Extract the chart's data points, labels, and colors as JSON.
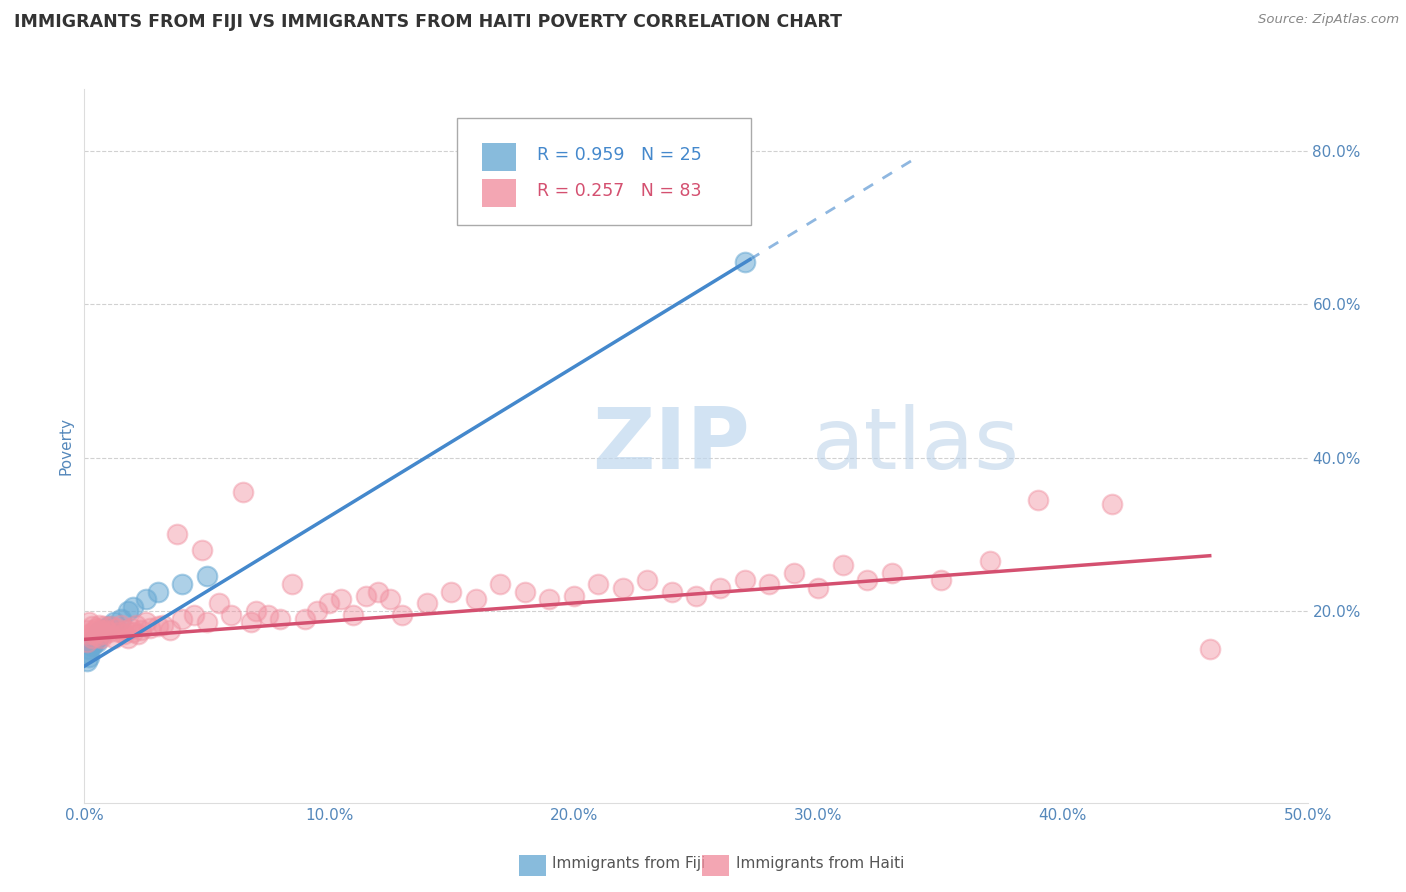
{
  "title": "IMMIGRANTS FROM FIJI VS IMMIGRANTS FROM HAITI POVERTY CORRELATION CHART",
  "source": "Source: ZipAtlas.com",
  "ylabel": "Poverty",
  "xlim": [
    0.0,
    0.5
  ],
  "ylim": [
    -0.05,
    0.88
  ],
  "xticks": [
    0.0,
    0.1,
    0.2,
    0.3,
    0.4,
    0.5
  ],
  "xtick_labels": [
    "0.0%",
    "10.0%",
    "20.0%",
    "30.0%",
    "40.0%",
    "50.0%"
  ],
  "ytick_labels": [
    "20.0%",
    "40.0%",
    "60.0%",
    "80.0%"
  ],
  "ytick_vals": [
    0.2,
    0.4,
    0.6,
    0.8
  ],
  "fiji_color": "#6aaad4",
  "fiji_line_color": "#4488cc",
  "haiti_color": "#f090a0",
  "haiti_line_color": "#d45070",
  "fiji_R": "0.959",
  "fiji_N": "25",
  "haiti_R": "0.257",
  "haiti_N": "83",
  "fiji_scatter_x": [
    0.001,
    0.001,
    0.002,
    0.002,
    0.003,
    0.003,
    0.004,
    0.004,
    0.005,
    0.005,
    0.006,
    0.006,
    0.007,
    0.008,
    0.009,
    0.01,
    0.012,
    0.015,
    0.018,
    0.02,
    0.025,
    0.03,
    0.04,
    0.05,
    0.27
  ],
  "fiji_scatter_y": [
    0.135,
    0.145,
    0.14,
    0.15,
    0.155,
    0.16,
    0.158,
    0.162,
    0.16,
    0.165,
    0.168,
    0.172,
    0.17,
    0.175,
    0.178,
    0.18,
    0.185,
    0.19,
    0.2,
    0.205,
    0.215,
    0.225,
    0.235,
    0.245,
    0.655
  ],
  "haiti_scatter_x": [
    0.001,
    0.001,
    0.002,
    0.002,
    0.003,
    0.003,
    0.004,
    0.004,
    0.005,
    0.005,
    0.006,
    0.006,
    0.007,
    0.007,
    0.008,
    0.008,
    0.009,
    0.01,
    0.011,
    0.012,
    0.013,
    0.014,
    0.015,
    0.016,
    0.017,
    0.018,
    0.019,
    0.02,
    0.021,
    0.022,
    0.023,
    0.025,
    0.027,
    0.03,
    0.032,
    0.035,
    0.038,
    0.04,
    0.045,
    0.048,
    0.05,
    0.055,
    0.06,
    0.065,
    0.068,
    0.07,
    0.075,
    0.08,
    0.085,
    0.09,
    0.095,
    0.1,
    0.105,
    0.11,
    0.115,
    0.12,
    0.125,
    0.13,
    0.14,
    0.15,
    0.16,
    0.17,
    0.18,
    0.19,
    0.2,
    0.21,
    0.22,
    0.23,
    0.24,
    0.25,
    0.26,
    0.27,
    0.28,
    0.29,
    0.3,
    0.31,
    0.32,
    0.33,
    0.35,
    0.37,
    0.39,
    0.42,
    0.46
  ],
  "haiti_scatter_y": [
    0.175,
    0.16,
    0.17,
    0.185,
    0.165,
    0.18,
    0.17,
    0.175,
    0.168,
    0.178,
    0.172,
    0.182,
    0.165,
    0.175,
    0.17,
    0.18,
    0.175,
    0.172,
    0.18,
    0.165,
    0.178,
    0.172,
    0.182,
    0.17,
    0.175,
    0.165,
    0.178,
    0.172,
    0.182,
    0.17,
    0.175,
    0.185,
    0.178,
    0.18,
    0.182,
    0.175,
    0.3,
    0.19,
    0.195,
    0.28,
    0.185,
    0.21,
    0.195,
    0.355,
    0.185,
    0.2,
    0.195,
    0.19,
    0.235,
    0.19,
    0.2,
    0.21,
    0.215,
    0.195,
    0.22,
    0.225,
    0.215,
    0.195,
    0.21,
    0.225,
    0.215,
    0.235,
    0.225,
    0.215,
    0.22,
    0.235,
    0.23,
    0.24,
    0.225,
    0.22,
    0.23,
    0.24,
    0.235,
    0.25,
    0.23,
    0.26,
    0.24,
    0.25,
    0.24,
    0.265,
    0.345,
    0.34,
    0.15
  ],
  "background_color": "#ffffff",
  "grid_color": "#cccccc",
  "title_color": "#333333",
  "axis_label_color": "#5588bb",
  "source_color": "#888888",
  "legend_text_color": "#4488cc",
  "watermark_zip_color": "#c8dff0",
  "watermark_atlas_color": "#b0ccdd"
}
